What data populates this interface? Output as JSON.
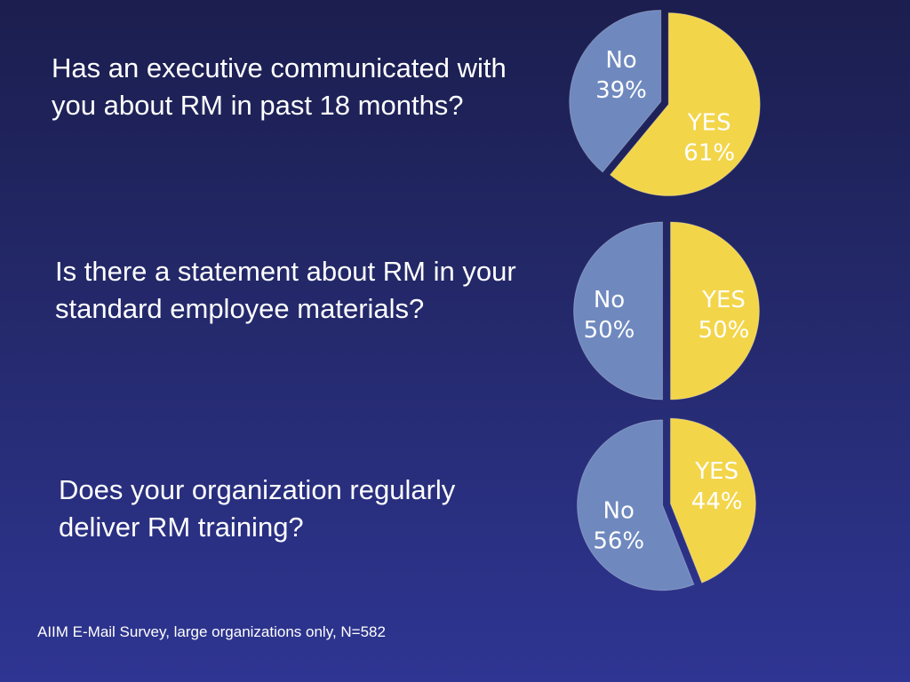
{
  "slide": {
    "background": "#262b74",
    "source_note": "AIIM E-Mail Survey, large organizations only, N=582"
  },
  "colors": {
    "yes": "#f3d54a",
    "no": "#6f89bf"
  },
  "chart_data": [
    {
      "type": "pie",
      "question": "Has an executive communicated with you about RM in past 18 months?",
      "slices": [
        {
          "label": "YES",
          "value": 61,
          "pct_label": "61%"
        },
        {
          "label": "No",
          "value": 39,
          "pct_label": "39%"
        }
      ]
    },
    {
      "type": "pie",
      "question": "Is there a statement about RM in your standard employee materials?",
      "slices": [
        {
          "label": "YES",
          "value": 50,
          "pct_label": "50%"
        },
        {
          "label": "No",
          "value": 50,
          "pct_label": "50%"
        }
      ]
    },
    {
      "type": "pie",
      "question": "Does your organization regularly deliver RM training?",
      "slices": [
        {
          "label": "YES",
          "value": 44,
          "pct_label": "44%"
        },
        {
          "label": "No",
          "value": 56,
          "pct_label": "56%"
        }
      ]
    }
  ]
}
